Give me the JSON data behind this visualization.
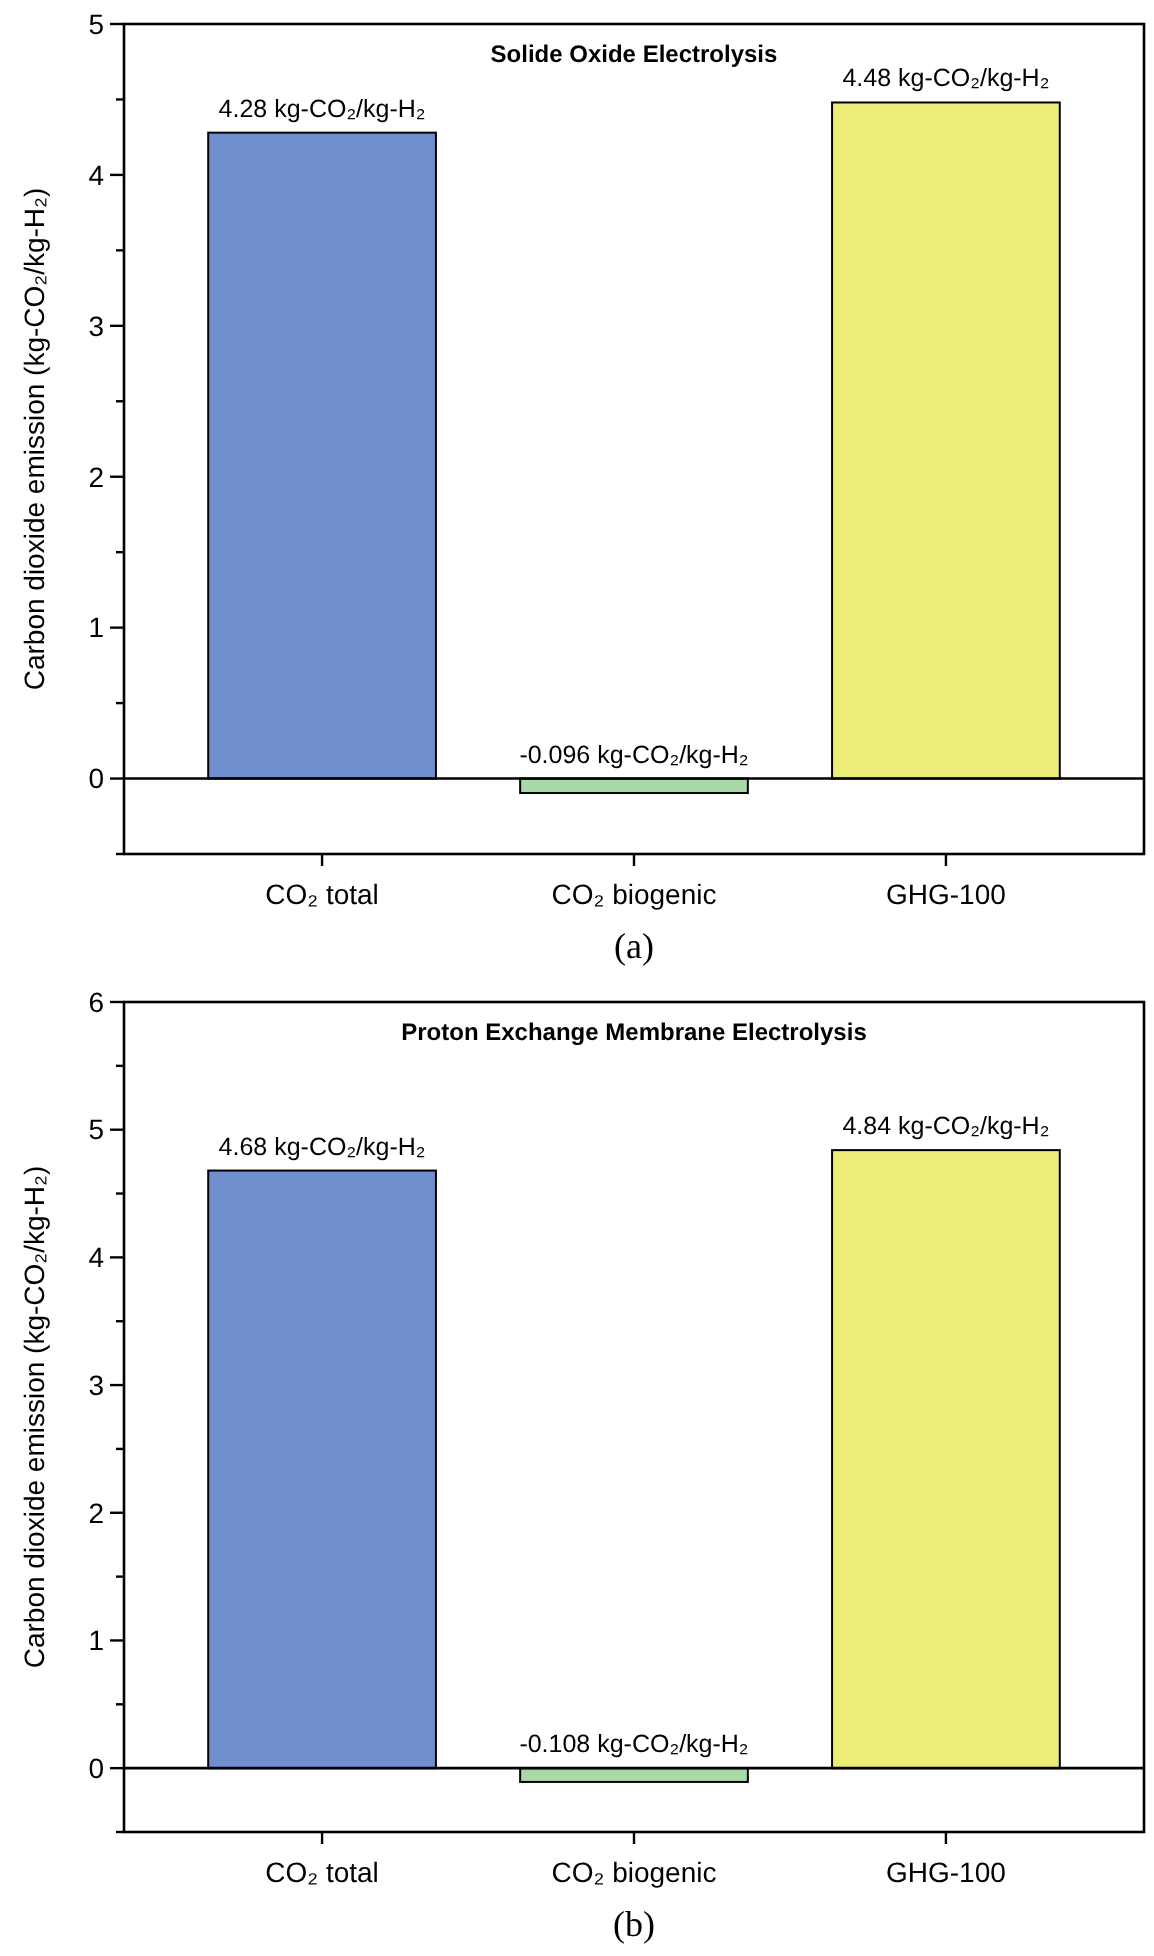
{
  "chart_data": [
    {
      "type": "bar",
      "title": "Solide Oxide Electrolysis",
      "ylabel": "Carbon dioxide emission (kg-CO₂/kg-H₂)",
      "categories": [
        "CO₂ total",
        "CO₂ biogenic",
        "GHG-100"
      ],
      "values": [
        4.28,
        -0.096,
        4.48
      ],
      "colors": [
        "#6f8fcf",
        "#a9d8a9",
        "#ecec78"
      ],
      "value_labels": [
        "4.28 kg-CO₂/kg-H₂",
        "-0.096 kg-CO₂/kg-H₂",
        "4.48 kg-CO₂/kg-H₂"
      ],
      "ylim": [
        -0.5,
        5
      ],
      "yticks": [
        {
          "value": -0.5,
          "label": null
        },
        0,
        {
          "value": 0.5,
          "label": null
        },
        1,
        {
          "value": 1.5,
          "label": null
        },
        2,
        {
          "value": 2.5,
          "label": null
        },
        3,
        {
          "value": 3.5,
          "label": null
        },
        4,
        {
          "value": 4.5,
          "label": null
        },
        5
      ],
      "ref_lines": [
        {
          "axis": "y",
          "value": 0,
          "label": null,
          "color": "#000000"
        }
      ],
      "annotations": [
        "(a)"
      ],
      "grid": false
    },
    {
      "type": "bar",
      "title": "Proton Exchange Membrane Electrolysis",
      "ylabel": "Carbon dioxide emission (kg-CO₂/kg-H₂)",
      "categories": [
        "CO₂ total",
        "CO₂ biogenic",
        "GHG-100"
      ],
      "values": [
        4.68,
        -0.108,
        4.84
      ],
      "colors": [
        "#6f8fcf",
        "#a9d8a9",
        "#ecec78"
      ],
      "value_labels": [
        "4.68 kg-CO₂/kg-H₂",
        "-0.108 kg-CO₂/kg-H₂",
        "4.84 kg-CO₂/kg-H₂"
      ],
      "ylim": [
        -0.5,
        6
      ],
      "yticks": [
        {
          "value": -0.5,
          "label": null
        },
        0,
        {
          "value": 0.5,
          "label": null
        },
        1,
        {
          "value": 1.5,
          "label": null
        },
        2,
        {
          "value": 2.5,
          "label": null
        },
        3,
        {
          "value": 3.5,
          "label": null
        },
        4,
        {
          "value": 4.5,
          "label": null
        },
        5,
        {
          "value": 5.5,
          "label": null
        },
        6
      ],
      "ref_lines": [
        {
          "axis": "y",
          "value": 0,
          "label": null,
          "color": "#000000"
        }
      ],
      "annotations": [
        "(b)"
      ],
      "grid": false
    }
  ]
}
